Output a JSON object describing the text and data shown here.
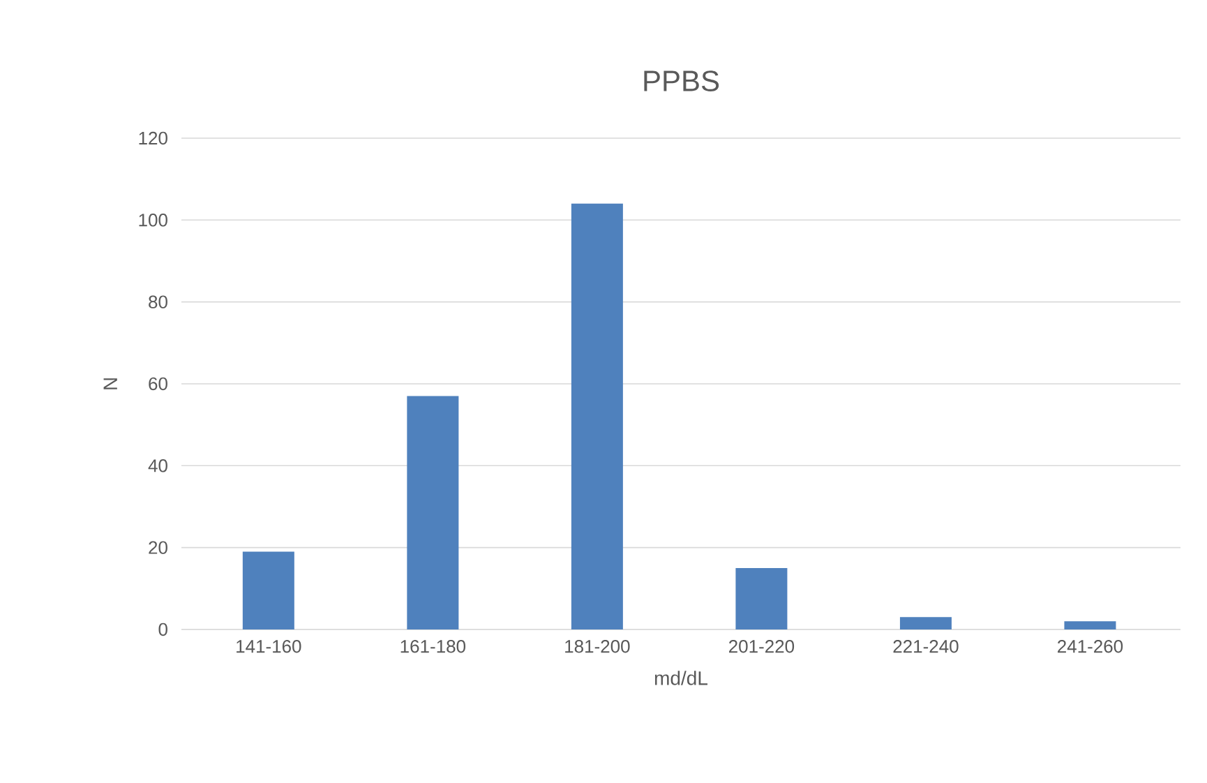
{
  "chart_data": {
    "type": "bar",
    "title": "PPBS",
    "xlabel": "md/dL",
    "ylabel": "N",
    "categories": [
      "141-160",
      "161-180",
      "181-200",
      "201-220",
      "221-240",
      "241-260"
    ],
    "values": [
      19,
      57,
      104,
      15,
      3,
      2
    ],
    "color": "#4f81bd",
    "ylim": [
      0,
      120
    ],
    "yticks": [
      0,
      20,
      40,
      60,
      80,
      100,
      120
    ],
    "grid": "y"
  }
}
